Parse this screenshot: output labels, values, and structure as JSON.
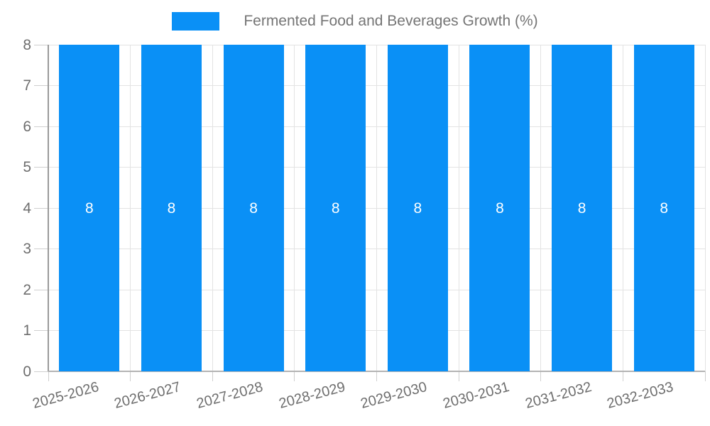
{
  "chart_data": {
    "type": "bar",
    "title": "",
    "categories": [
      "2025-2026",
      "2026-2027",
      "2027-2028",
      "2028-2029",
      "2029-2030",
      "2030-2031",
      "2031-2032",
      "2032-2033"
    ],
    "series": [
      {
        "name": "Fermented Food and Beverages Growth (%)",
        "values": [
          8,
          8,
          8,
          8,
          8,
          8,
          8,
          8
        ]
      }
    ],
    "data_labels": [
      "8",
      "8",
      "8",
      "8",
      "8",
      "8",
      "8",
      "8"
    ],
    "xlabel": "",
    "ylabel": "",
    "ylim": [
      0,
      8
    ],
    "yticks": [
      0,
      1,
      2,
      3,
      4,
      5,
      6,
      7,
      8
    ],
    "grid": true,
    "legend_position": "top-center",
    "colors": {
      "bar": "#0a90f6",
      "bar_label_text": "#ffffff",
      "tick_text": "#6e6e6e",
      "legend_text": "#757575",
      "gridline": "#e3e3e3",
      "tick_mark": "#cfcfcf",
      "y_axis_line": "#9a9a9a",
      "x_axis_line": "#b3b3b3",
      "background": "#ffffff"
    }
  }
}
